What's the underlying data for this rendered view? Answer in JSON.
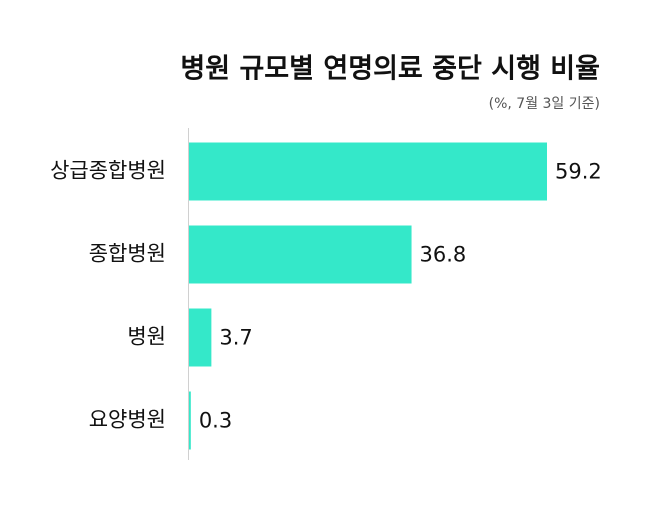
{
  "chart_data": {
    "type": "bar",
    "orientation": "horizontal",
    "title": "병원 규모별 연명의료 중단 시행 비율",
    "subtitle": "(%, 7월 3일 기준)",
    "categories": [
      "상급종합병원",
      "종합병원",
      "병원",
      "요양병원"
    ],
    "values": [
      59.2,
      36.8,
      3.7,
      0.3
    ],
    "color": "#34e8c9"
  }
}
